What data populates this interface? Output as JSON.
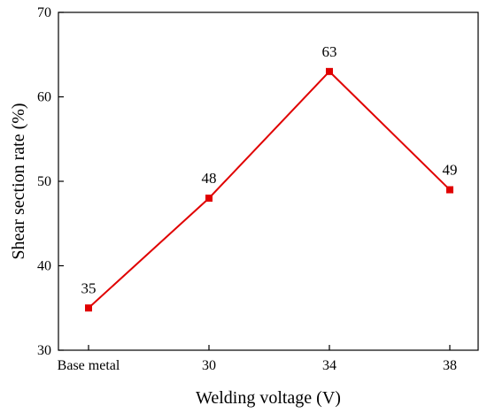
{
  "chart_data": {
    "type": "line",
    "categories": [
      "Base metal",
      "30",
      "34",
      "38"
    ],
    "series": [
      {
        "values": [
          35,
          48,
          63,
          49
        ],
        "color": "#e00000",
        "marker": "square"
      }
    ],
    "data_labels": [
      "35",
      "48",
      "63",
      "49"
    ],
    "xlabel": "Welding voltage (V)",
    "ylabel": "Shear section rate (%)",
    "ylim": [
      30,
      70
    ],
    "yticks": [
      30,
      40,
      50,
      60,
      70
    ],
    "grid": false,
    "legend": "none"
  }
}
